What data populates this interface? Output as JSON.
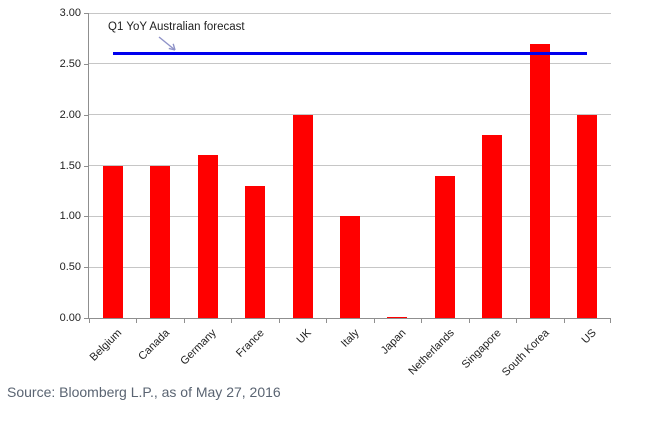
{
  "chart_data": {
    "type": "bar",
    "title": "",
    "xlabel": "",
    "ylabel": "",
    "categories": [
      "Belgium",
      "Canada",
      "Germany",
      "France",
      "UK",
      "Italy",
      "Japan",
      "Netherlands",
      "Singapore",
      "South Korea",
      "US"
    ],
    "values": [
      1.5,
      1.5,
      1.6,
      1.3,
      2.0,
      1.0,
      0.01,
      1.4,
      1.8,
      2.7,
      2.0
    ],
    "bar_color": "#ff0000",
    "ylim": [
      0,
      3
    ],
    "y_tick_labels": [
      "0.00",
      "0.50",
      "1.00",
      "1.50",
      "2.00",
      "2.50",
      "3.00"
    ],
    "grid": "horizontal",
    "legend": "none",
    "forecast_line": {
      "label": "Q1 YoY Australian forecast",
      "value": 2.6,
      "color": "#0000ee"
    }
  },
  "source": {
    "text": "Source: Bloomberg L.P., as of May 27, 2016"
  },
  "colors": {
    "gridline": "#c6c6c6",
    "axis": "#8f8f8f",
    "tick_text": "#1f1f1f",
    "source_text": "#5a6472",
    "annotation_arrow": "#8f93c8"
  }
}
